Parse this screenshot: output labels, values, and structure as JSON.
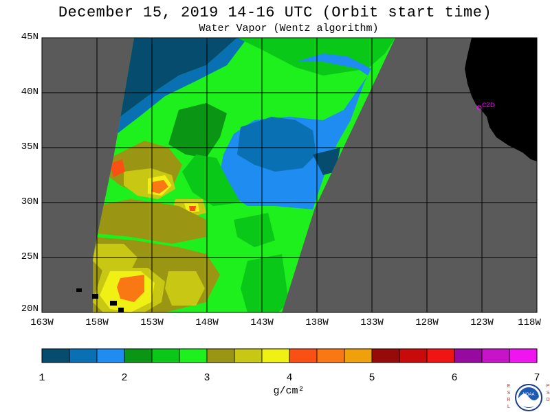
{
  "title": "December 15, 2019  14-16 UTC  (Orbit start time)",
  "subtitle": "Water Vapor (Wentz algorithm)",
  "lat_labels": [
    "45N",
    "40N",
    "35N",
    "30N",
    "25N",
    "20N"
  ],
  "lon_labels": [
    "163W",
    "158W",
    "153W",
    "148W",
    "143W",
    "138W",
    "133W",
    "128W",
    "123W",
    "118W"
  ],
  "station_label": "CZD",
  "colorbar": {
    "tick_labels": [
      "1",
      "2",
      "3",
      "4",
      "5",
      "6",
      "7"
    ],
    "unit": "g/cm²",
    "colors": [
      "#064c6e",
      "#0a70b4",
      "#1e8cf0",
      "#0a9614",
      "#0ac818",
      "#1ef01e",
      "#9a9614",
      "#c8c814",
      "#f0f014",
      "#fa5014",
      "#fa7814",
      "#f0a00a",
      "#960a0a",
      "#c80a0a",
      "#f01414",
      "#960aa0",
      "#c814c8",
      "#f014f0"
    ]
  },
  "logo": {
    "left_text": "ESRL",
    "right_text": "PSD",
    "name": "noaa-logo-icon"
  },
  "colors": {
    "land": "#000000",
    "no_data": "#5a5a5a",
    "station": "#ff00ff"
  }
}
